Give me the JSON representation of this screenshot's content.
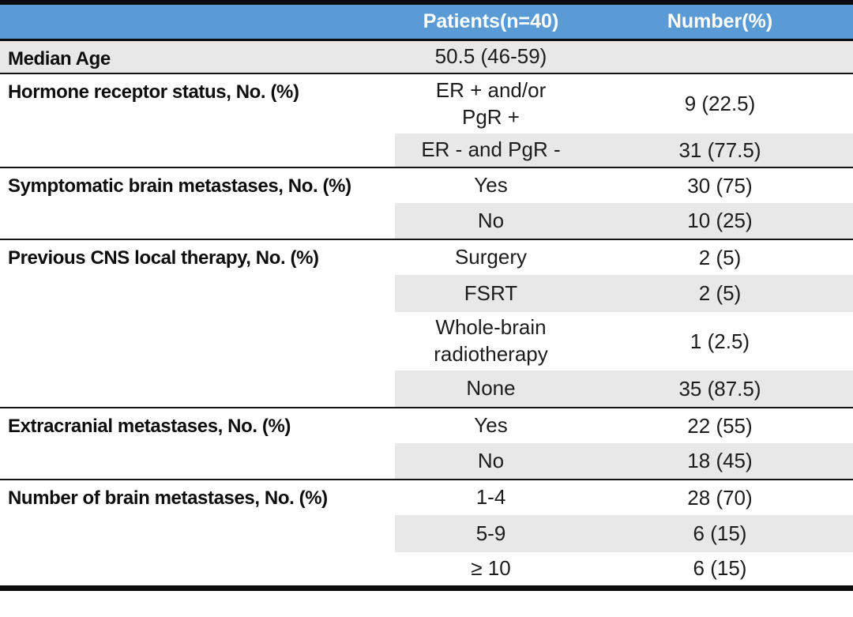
{
  "colors": {
    "header_bg": "#5B9BD5",
    "header_text": "#FFFFFF",
    "band_bg": "#E9E8E8",
    "rule": "#141414"
  },
  "header": {
    "patients": "Patients(n=40)",
    "number": "Number(%)"
  },
  "sections": [
    {
      "label": "Median Age",
      "rows": [
        {
          "patients": "50.5 (46-59)",
          "number": ""
        }
      ]
    },
    {
      "label": "Hormone receptor status, No. (%)",
      "rows": [
        {
          "patients": "ER + and/or\nPgR +",
          "number": "9 (22.5)"
        },
        {
          "patients": "ER - and PgR -",
          "number": "31 (77.5)"
        }
      ]
    },
    {
      "label": "Symptomatic brain metastases, No. (%)",
      "rows": [
        {
          "patients": "Yes",
          "number": "30 (75)"
        },
        {
          "patients": "No",
          "number": "10 (25)"
        }
      ]
    },
    {
      "label": "Previous CNS local therapy, No. (%)",
      "rows": [
        {
          "patients": "Surgery",
          "number": "2 (5)"
        },
        {
          "patients": "FSRT",
          "number": "2 (5)"
        },
        {
          "patients": "Whole-brain\nradiotherapy",
          "number": "1 (2.5)"
        },
        {
          "patients": "None",
          "number": "35 (87.5)"
        }
      ]
    },
    {
      "label": "Extracranial metastases, No. (%)",
      "rows": [
        {
          "patients": "Yes",
          "number": "22 (55)"
        },
        {
          "patients": "No",
          "number": "18 (45)"
        }
      ]
    },
    {
      "label": "Number of brain metastases, No. (%)",
      "rows": [
        {
          "patients": "1-4",
          "number": "28 (70)"
        },
        {
          "patients": "5-9",
          "number": "6 (15)"
        },
        {
          "patients": "≥ 10",
          "number": "6 (15)"
        }
      ]
    }
  ]
}
